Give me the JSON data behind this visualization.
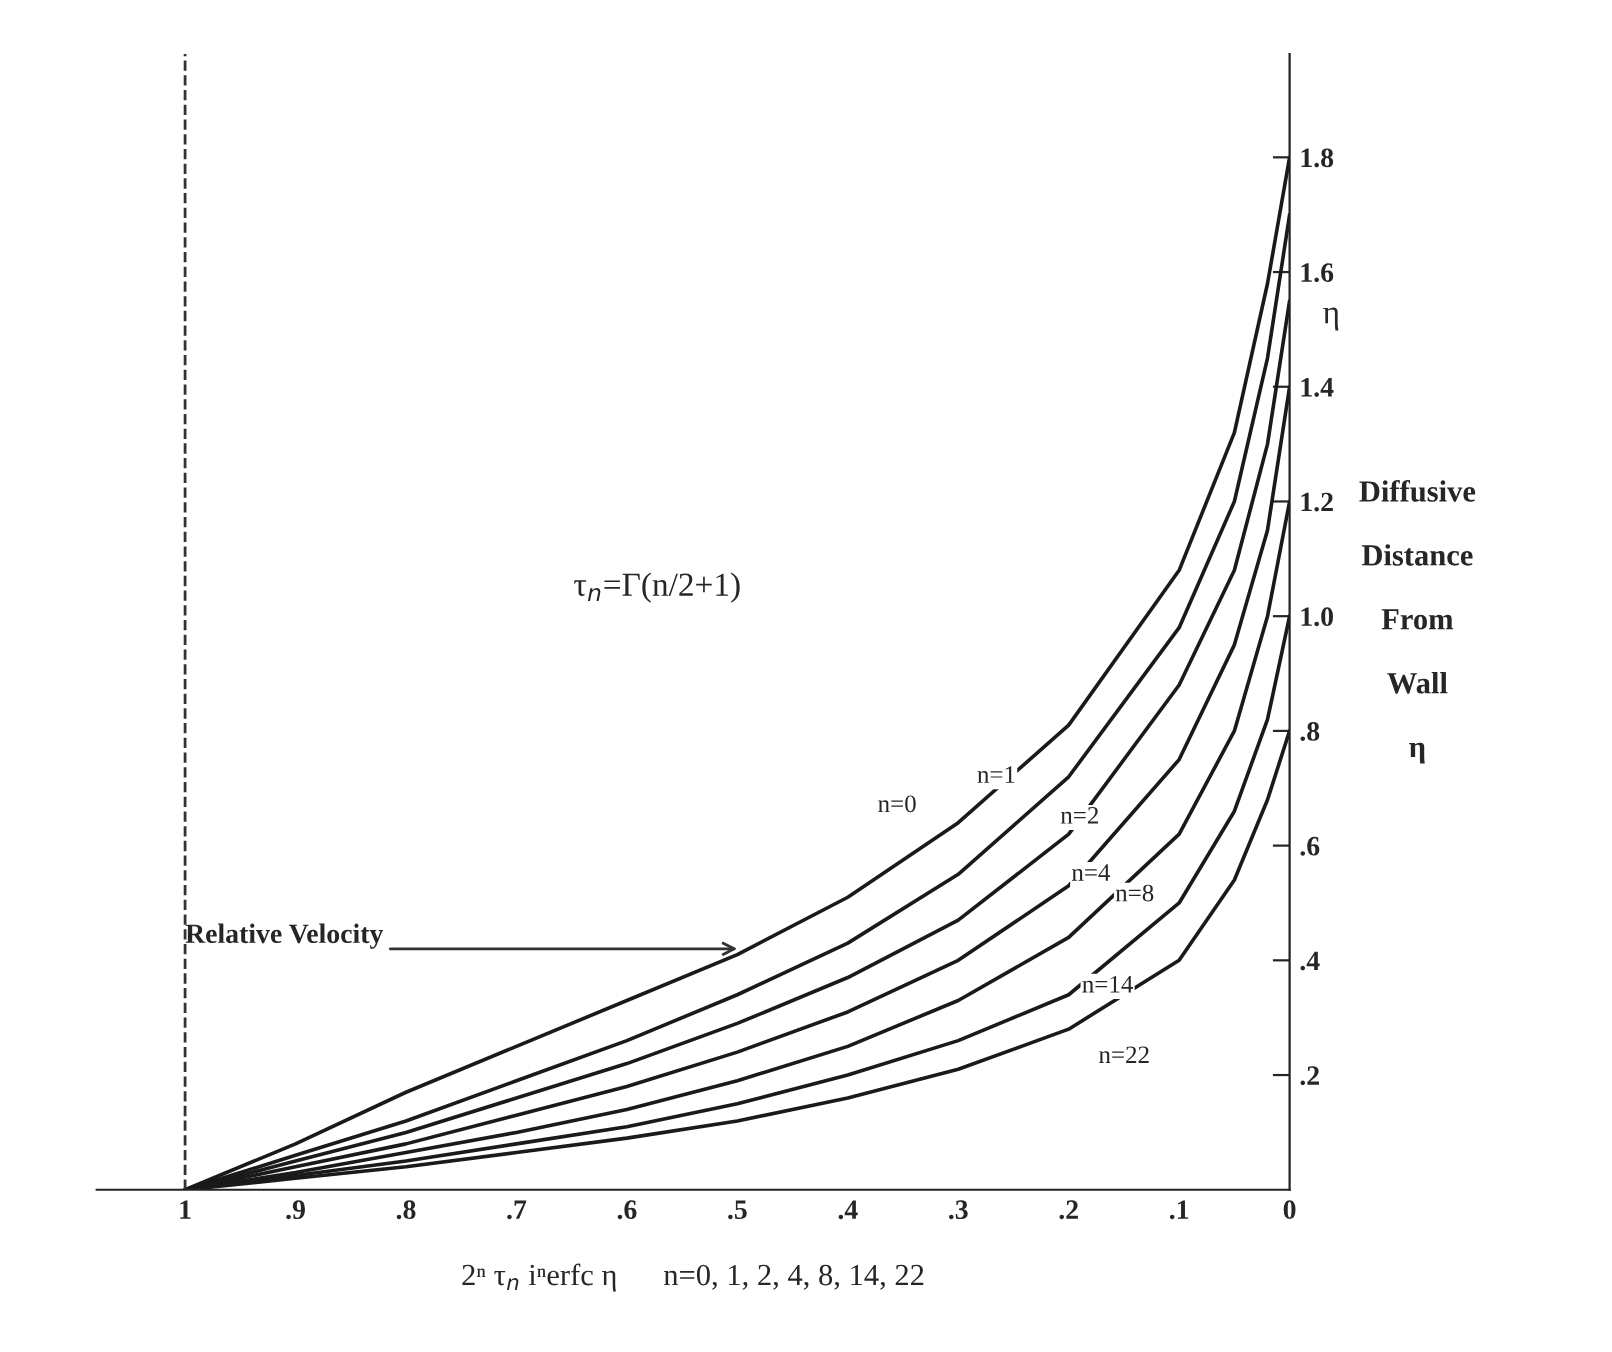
{
  "chart_data": {
    "type": "line",
    "xlabel": "2ⁿ τ$_{n}$ iⁿerfc η      n=0, 1, 2, 4, 8, 14, 22",
    "ylabel": "Diffusive\n\nDistance\n\nFrom\n\nWall\n\nη",
    "x": [
      1,
      0.9,
      0.8,
      0.7,
      0.6,
      0.5,
      0.4,
      0.3,
      0.2,
      0.1,
      0.05,
      0.02,
      0
    ],
    "series": [
      {
        "color": "#1a1a1a",
        "values": [
          0,
          0.08,
          0.17,
          0.25,
          0.33,
          0.41,
          0.51,
          0.64,
          0.81,
          1.08,
          1.32,
          1.58,
          1.8
        ]
      },
      {
        "color": "#1a1a1a",
        "values": [
          0,
          0.06,
          0.12,
          0.19,
          0.26,
          0.34,
          0.43,
          0.55,
          0.72,
          0.98,
          1.2,
          1.45,
          1.7
        ]
      },
      {
        "color": "#1a1a1a",
        "values": [
          0,
          0.05,
          0.1,
          0.16,
          0.22,
          0.29,
          0.37,
          0.47,
          0.62,
          0.88,
          1.08,
          1.3,
          1.55
        ]
      },
      {
        "color": "#1a1a1a",
        "values": [
          0,
          0.04,
          0.08,
          0.13,
          0.18,
          0.24,
          0.31,
          0.4,
          0.53,
          0.75,
          0.95,
          1.15,
          1.4
        ]
      },
      {
        "color": "#1a1a1a",
        "values": [
          0,
          0.03,
          0.065,
          0.1,
          0.14,
          0.19,
          0.25,
          0.33,
          0.44,
          0.62,
          0.8,
          1.0,
          1.2
        ]
      },
      {
        "color": "#1a1a1a",
        "values": [
          0,
          0.025,
          0.05,
          0.08,
          0.11,
          0.15,
          0.2,
          0.26,
          0.34,
          0.5,
          0.66,
          0.82,
          1.0
        ]
      },
      {
        "color": "#1a1a1a",
        "values": [
          0,
          0.02,
          0.04,
          0.065,
          0.09,
          0.12,
          0.16,
          0.21,
          0.28,
          0.4,
          0.54,
          0.68,
          0.8
        ]
      }
    ],
    "xlim": [
      1.08,
      0
    ],
    "xticks": [
      {
        "value": 1,
        "label": "1"
      },
      {
        "value": 0.9,
        "label": ".9"
      },
      {
        "value": 0.8,
        "label": ".8"
      },
      {
        "value": 0.7,
        "label": ".7"
      },
      {
        "value": 0.6,
        "label": ".6"
      },
      {
        "value": 0.5,
        "label": ".5"
      },
      {
        "value": 0.4,
        "label": ".4"
      },
      {
        "value": 0.3,
        "label": ".3"
      },
      {
        "value": 0.2,
        "label": ".2"
      },
      {
        "value": 0.1,
        "label": ".1"
      },
      {
        "value": 0,
        "label": "0"
      }
    ],
    "ylim": [
      0,
      1.98
    ],
    "yticks": [
      {
        "value": 0.2,
        "label": ".2"
      },
      {
        "value": 0.4,
        "label": ".4"
      },
      {
        "value": 0.6,
        "label": ".6"
      },
      {
        "value": 0.8,
        "label": ".8"
      },
      {
        "value": 1.0,
        "label": "1.0"
      },
      {
        "value": 1.2,
        "label": "1.2"
      },
      {
        "value": 1.4,
        "label": "1.4"
      },
      {
        "value": 1.6,
        "label": "1.6"
      },
      {
        "value": 1.8,
        "label": "1.8"
      }
    ],
    "ref_lines": [
      {
        "axis": "x",
        "value": 1,
        "line_style": "dashed",
        "color": "#333333"
      }
    ],
    "annotations": [
      {
        "text": "n=0",
        "x": 0.3,
        "y": 0.64
      },
      {
        "text": "n=1",
        "x": 0.2,
        "y": 0.72
      },
      {
        "text": "n=2",
        "x": 0.2,
        "y": 0.62
      },
      {
        "text": "n=4",
        "x": 0.2,
        "y": 0.53
      },
      {
        "text": "n=8",
        "x": 0.1,
        "y": 0.62
      },
      {
        "text": "n=14",
        "x": 0.2,
        "y": 0.34
      },
      {
        "text": "n=22",
        "x": 0.2,
        "y": 0.28
      },
      {
        "text": "Relative Velocity",
        "x": 0.5,
        "y": 0.42
      },
      "τ$_{n}$=Γ(n/2+1)",
      "η"
    ],
    "line_style": "solid",
    "grid": false
  }
}
